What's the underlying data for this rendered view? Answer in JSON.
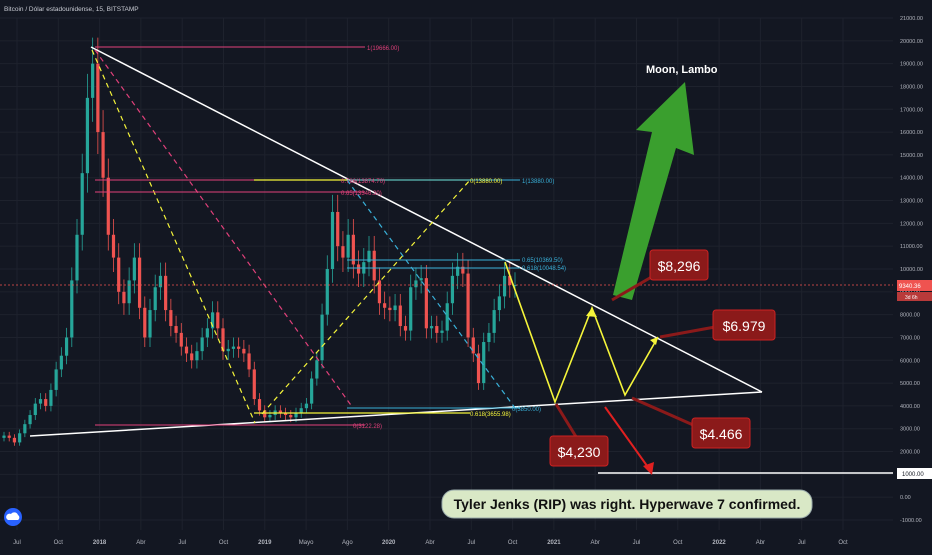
{
  "header": {
    "symbol_title": "Bitcoin / Dólar estadounidense, 15, BITSTAMP"
  },
  "colors": {
    "background": "#131722",
    "grid": "#1f2430",
    "up": "#26a69a",
    "down": "#ef5350",
    "white_line": "#ffffff",
    "yellow": "#f5f53a",
    "pink": "#e0407a",
    "cyan": "#39b0d8",
    "red_callout": "#8b1a1a",
    "green_arrow": "#3a9f2e"
  },
  "chart_data": {
    "type": "candlestick",
    "ylim": [
      -1000,
      21000
    ],
    "y_ticks": [
      "21000.00",
      "20000.00",
      "19000.00",
      "18000.00",
      "17000.00",
      "16000.00",
      "15000.00",
      "14000.00",
      "13000.00",
      "12000.00",
      "11000.00",
      "10000.00",
      "9000.00",
      "8000.00",
      "7000.00",
      "6000.00",
      "5000.00",
      "4000.00",
      "3000.00",
      "2000.00",
      "1000.00",
      "0.00",
      "-1000.00"
    ],
    "x_ticks": [
      "Jul",
      "Oct",
      "2018",
      "Abr",
      "Jul",
      "Oct",
      "2019",
      "Mayo",
      "Ago",
      "2020",
      "Abr",
      "Jul",
      "Oct",
      "2021",
      "Abr",
      "Jul",
      "Oct",
      "2022",
      "Abr",
      "Jul",
      "Oct"
    ],
    "last_price_label": "9340.36",
    "countdown_label": "3d 6h",
    "fib_labels": {
      "pink_top": "1(19666.00)",
      "pink_mid_a": "0.786(13874.70)",
      "pink_mid_b": "0.65(13346.30)",
      "pink_bottom": "0(3122.28)",
      "yellow_top": "0(13880.00)",
      "yellow_bottom": "0.618(3655.98)",
      "cyan_top": "1(13880.00)",
      "cyan_a": "0.65(10369.50)",
      "cyan_b": "0.618(10048.54)",
      "cyan_bottom": "0(3850.00)"
    },
    "targets": [
      {
        "label": "$8,296",
        "value": 8296
      },
      {
        "label": "$6.979",
        "value": 6979
      },
      {
        "label": "$4.466",
        "value": 4466
      },
      {
        "label": "$4,230",
        "value": 4230
      }
    ],
    "support_level_label": "1000.00",
    "annotations": {
      "moon": "Moon, Lambo",
      "caption": "Tyler Jenks (RIP) was right. Hyperwave 7 confirmed."
    },
    "candles_approx_close": [
      2700,
      2600,
      2400,
      2800,
      3200,
      3600,
      4100,
      4300,
      4000,
      4700,
      5600,
      6200,
      7000,
      9500,
      11500,
      14200,
      17500,
      19000,
      16000,
      14000,
      11500,
      10500,
      9000,
      8500,
      9500,
      10500,
      8300,
      7000,
      8200,
      9200,
      9700,
      8200,
      7500,
      7200,
      6600,
      6300,
      6000,
      6400,
      7000,
      7400,
      8100,
      7400,
      6400,
      6500,
      6600,
      6500,
      6300,
      5600,
      4300,
      3800,
      3500,
      3600,
      3800,
      3700,
      3600,
      3500,
      3700,
      3900,
      4100,
      5200,
      6000,
      8000,
      10000,
      12500,
      11000,
      10500,
      11500,
      10200,
      9800,
      10300,
      10800,
      9500,
      8500,
      8300,
      8200,
      8400,
      7500,
      7300,
      9200,
      9500,
      9600,
      7400,
      7500,
      7200,
      7300,
      8500,
      9700,
      10100,
      9800,
      7000,
      6300,
      5000,
      6800,
      7200,
      8200,
      8800,
      9700,
      9300,
      9300
    ]
  }
}
